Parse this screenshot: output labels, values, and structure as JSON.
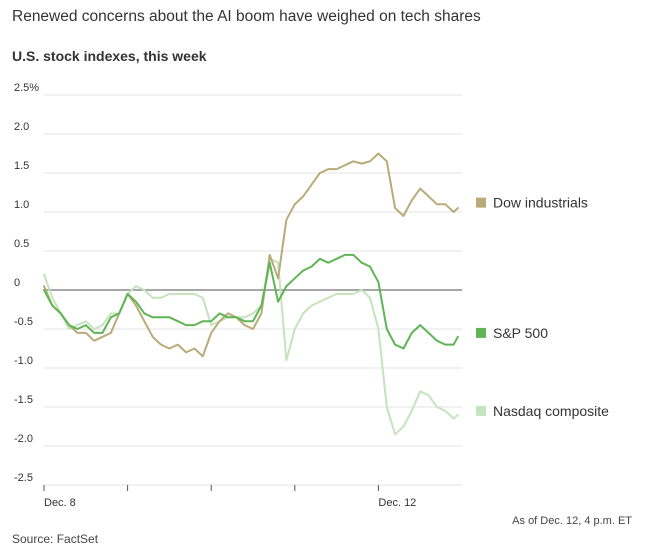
{
  "header": {
    "clipped_headline": "...",
    "subtitle": "Renewed concerns about the AI boom have weighed on tech shares"
  },
  "chart_data": {
    "type": "line",
    "title": "U.S. stock indexes, this week",
    "xlabel": "",
    "ylabel": "",
    "ylim": [
      -2.5,
      2.5
    ],
    "yticks": [
      {
        "value": 2.5,
        "label": "2.5%"
      },
      {
        "value": 2.0,
        "label": "2.0"
      },
      {
        "value": 1.5,
        "label": "1.5"
      },
      {
        "value": 1.0,
        "label": "1.0"
      },
      {
        "value": 0.5,
        "label": "0.5"
      },
      {
        "value": 0,
        "label": "0"
      },
      {
        "value": -0.5,
        "label": "-0.5"
      },
      {
        "value": -1.0,
        "label": "-1.0"
      },
      {
        "value": -1.5,
        "label": "-1.5"
      },
      {
        "value": -2.0,
        "label": "-2.0"
      },
      {
        "value": -2.5,
        "label": "-2.5"
      }
    ],
    "xlim": [
      0,
      5
    ],
    "xticks": [
      {
        "value": 0,
        "label": "Dec. 8"
      },
      {
        "value": 1,
        "label": ""
      },
      {
        "value": 2,
        "label": ""
      },
      {
        "value": 3,
        "label": ""
      },
      {
        "value": 4,
        "label": "Dec. 12"
      }
    ],
    "x": [
      0,
      0.1,
      0.2,
      0.3,
      0.4,
      0.5,
      0.6,
      0.7,
      0.8,
      0.9,
      1.0,
      1.1,
      1.2,
      1.3,
      1.4,
      1.5,
      1.6,
      1.7,
      1.8,
      1.9,
      2.0,
      2.1,
      2.2,
      2.3,
      2.4,
      2.5,
      2.6,
      2.7,
      2.8,
      2.9,
      3.0,
      3.1,
      3.2,
      3.3,
      3.4,
      3.5,
      3.6,
      3.7,
      3.8,
      3.9,
      4.0,
      4.1,
      4.2,
      4.3,
      4.4,
      4.5,
      4.6,
      4.7,
      4.8,
      4.9,
      4.95
    ],
    "series": [
      {
        "name": "Dow industrials",
        "color": "#b8ab78",
        "values": [
          0.05,
          -0.2,
          -0.3,
          -0.45,
          -0.55,
          -0.55,
          -0.65,
          -0.6,
          -0.55,
          -0.3,
          -0.05,
          -0.2,
          -0.4,
          -0.6,
          -0.7,
          -0.75,
          -0.7,
          -0.8,
          -0.75,
          -0.85,
          -0.55,
          -0.4,
          -0.3,
          -0.35,
          -0.45,
          -0.5,
          -0.3,
          0.45,
          0.15,
          0.9,
          1.1,
          1.2,
          1.35,
          1.5,
          1.55,
          1.55,
          1.6,
          1.65,
          1.62,
          1.65,
          1.75,
          1.65,
          1.05,
          0.95,
          1.15,
          1.3,
          1.2,
          1.1,
          1.1,
          1.0,
          1.05
        ]
      },
      {
        "name": "S&P 500",
        "color": "#5fb555",
        "values": [
          0.0,
          -0.2,
          -0.3,
          -0.45,
          -0.5,
          -0.45,
          -0.55,
          -0.55,
          -0.35,
          -0.3,
          -0.05,
          -0.15,
          -0.3,
          -0.35,
          -0.35,
          -0.35,
          -0.4,
          -0.45,
          -0.45,
          -0.4,
          -0.4,
          -0.3,
          -0.35,
          -0.35,
          -0.4,
          -0.4,
          -0.2,
          0.35,
          -0.15,
          0.05,
          0.15,
          0.25,
          0.3,
          0.4,
          0.35,
          0.4,
          0.45,
          0.45,
          0.35,
          0.3,
          0.1,
          -0.5,
          -0.7,
          -0.75,
          -0.55,
          -0.45,
          -0.55,
          -0.65,
          -0.7,
          -0.7,
          -0.6
        ]
      },
      {
        "name": "Nasdaq composite",
        "color": "#c5e3bd",
        "values": [
          0.2,
          -0.1,
          -0.3,
          -0.5,
          -0.45,
          -0.4,
          -0.5,
          -0.45,
          -0.3,
          -0.3,
          -0.05,
          0.05,
          0.0,
          -0.1,
          -0.1,
          -0.05,
          -0.05,
          -0.05,
          -0.05,
          -0.1,
          -0.45,
          -0.4,
          -0.35,
          -0.35,
          -0.35,
          -0.3,
          -0.2,
          0.4,
          0.35,
          -0.9,
          -0.5,
          -0.3,
          -0.2,
          -0.15,
          -0.1,
          -0.05,
          -0.05,
          -0.05,
          0.0,
          -0.1,
          -0.5,
          -1.5,
          -1.85,
          -1.75,
          -1.55,
          -1.3,
          -1.35,
          -1.5,
          -1.55,
          -1.65,
          -1.6
        ]
      }
    ],
    "legend_placement": "right"
  },
  "footer": {
    "as_of": "As of Dec. 12, 4 p.m. ET",
    "source": "Source: FactSet"
  }
}
